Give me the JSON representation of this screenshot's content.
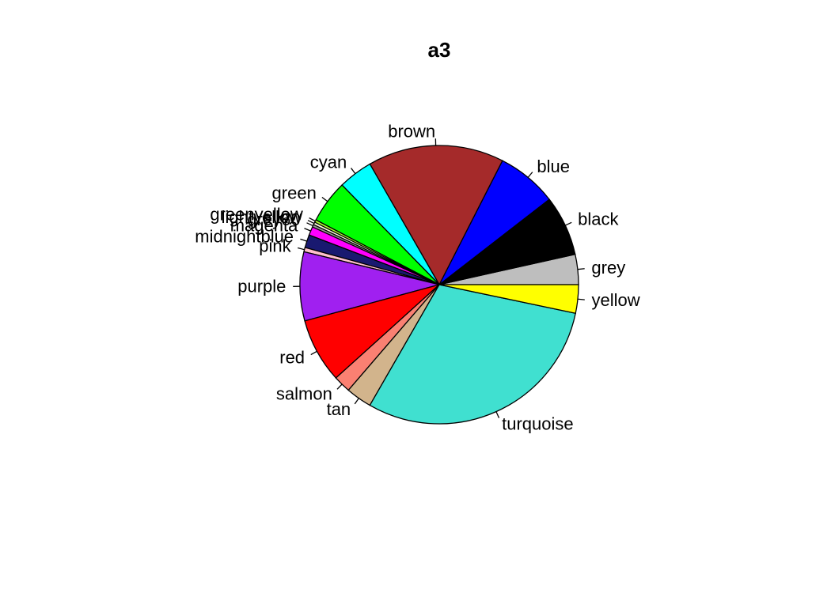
{
  "chart_data": {
    "type": "pie",
    "title": "a3",
    "start_angle_deg": 0,
    "direction": "counterclockwise",
    "slices": [
      {
        "label": "grey",
        "value": 3.5,
        "color": "#bebebe"
      },
      {
        "label": "black",
        "value": 7.0,
        "color": "#000000"
      },
      {
        "label": "blue",
        "value": 7.0,
        "color": "#0000ff"
      },
      {
        "label": "brown",
        "value": 15.8,
        "color": "#a52a2a"
      },
      {
        "label": "cyan",
        "value": 4.0,
        "color": "#00ffff"
      },
      {
        "label": "green",
        "value": 5.0,
        "color": "#00ff00"
      },
      {
        "label": "greenyellow",
        "value": 0.3,
        "color": "#adff2f"
      },
      {
        "label": "lightyellow",
        "value": 0.3,
        "color": "#ffffe0"
      },
      {
        "label": "grey60",
        "value": 0.3,
        "color": "#999999"
      },
      {
        "label": "magenta",
        "value": 1.0,
        "color": "#ff00ff"
      },
      {
        "label": "midnightblue",
        "value": 1.5,
        "color": "#191970"
      },
      {
        "label": "pink",
        "value": 0.5,
        "color": "#ffc0cb"
      },
      {
        "label": "purple",
        "value": 8.0,
        "color": "#a020f0"
      },
      {
        "label": "red",
        "value": 7.5,
        "color": "#ff0000"
      },
      {
        "label": "salmon",
        "value": 2.0,
        "color": "#fa8072"
      },
      {
        "label": "tan",
        "value": 3.0,
        "color": "#d2b48c"
      },
      {
        "label": "turquoise",
        "value": 30.0,
        "color": "#40e0d0"
      },
      {
        "label": "yellow",
        "value": 3.3,
        "color": "#ffff00"
      }
    ]
  }
}
